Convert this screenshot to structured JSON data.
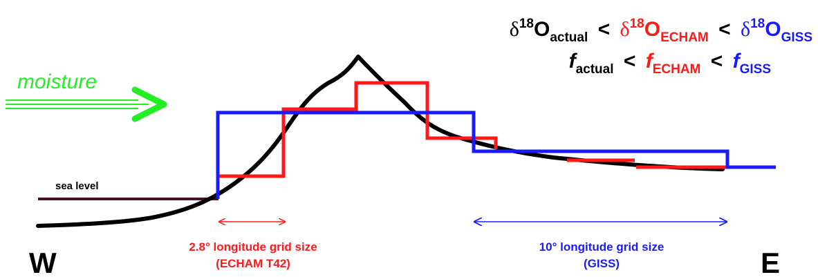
{
  "equations": [
    {
      "separator": "<",
      "terms": [
        {
          "symbol": "δ",
          "superscript": "18",
          "letter": "O",
          "subscript": "actual"
        },
        {
          "symbol": "δ",
          "superscript": "18",
          "letter": "O",
          "subscript": "ECHAM"
        },
        {
          "symbol": "δ",
          "superscript": "18",
          "letter": "O",
          "subscript": "GISS"
        }
      ]
    },
    {
      "separator": "<",
      "terms": [
        {
          "letter": "f",
          "subscript": "actual"
        },
        {
          "letter": "f",
          "subscript": "ECHAM"
        },
        {
          "letter": "f",
          "subscript": "GISS"
        }
      ]
    }
  ],
  "moisture": "moisture",
  "sea_level": "sea level",
  "echam": {
    "line1": "2.8° longitude grid size",
    "line2": "(ECHAM T42)"
  },
  "giss": {
    "line1": "10° longitude grid size",
    "line2": "(GISS)"
  },
  "west": "W",
  "east": "E"
}
